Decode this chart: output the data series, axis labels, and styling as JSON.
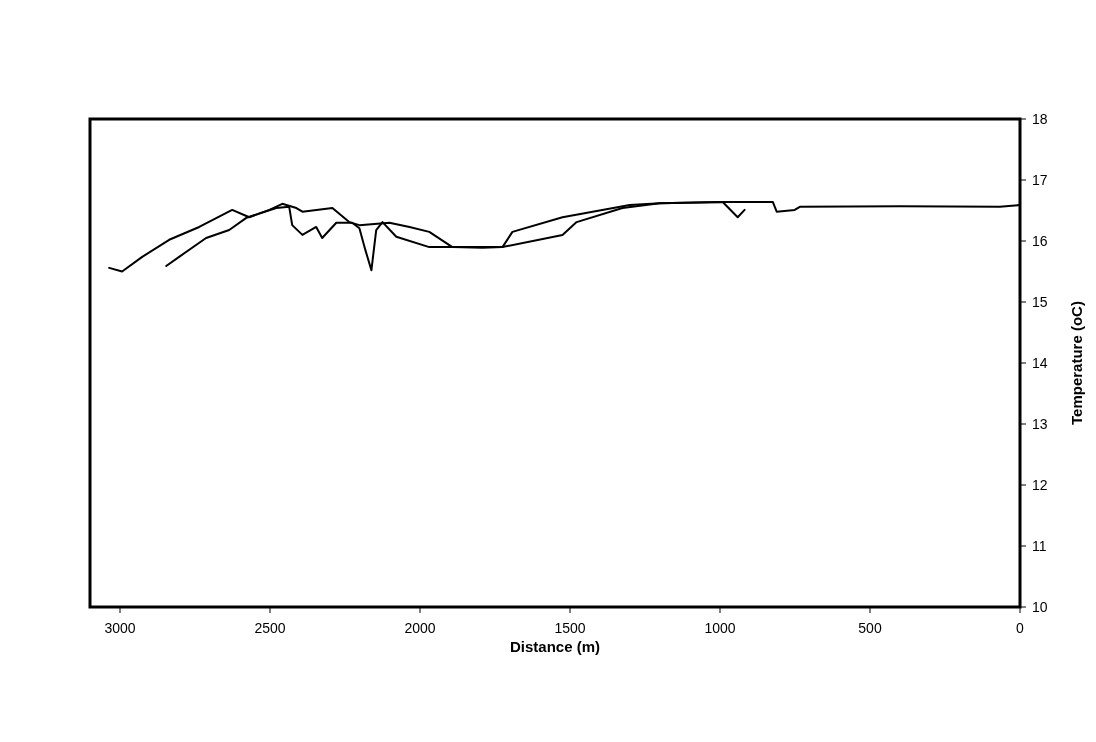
{
  "chart_data": {
    "type": "line",
    "xlabel": "Distance (m)",
    "ylabel": "Temperature (oC)",
    "xlim": [
      3100,
      0
    ],
    "xticks": [
      3000,
      2500,
      2000,
      1500,
      1000,
      500,
      0
    ],
    "ylim": [
      10,
      18
    ],
    "yticks": [
      10,
      11,
      12,
      13,
      14,
      15,
      16,
      17,
      18
    ],
    "marker": "none",
    "line_style": "solid",
    "series": [
      {
        "color": "#000000",
        "x": [
          3036,
          2993,
          2926,
          2836,
          2736,
          2626,
          2569,
          2502,
          2459,
          2412,
          2392,
          2292,
          2236,
          2202,
          2102,
          2035,
          1969,
          1892,
          1792,
          1725,
          1692,
          1525,
          1301,
          1201,
          991,
          941,
          918
        ],
        "values": [
          15.56,
          15.5,
          15.74,
          16.02,
          16.23,
          16.51,
          16.39,
          16.51,
          16.61,
          16.54,
          16.48,
          16.54,
          16.31,
          16.26,
          16.3,
          16.23,
          16.15,
          15.9,
          15.89,
          15.9,
          16.15,
          16.39,
          16.59,
          16.62,
          16.64,
          16.39,
          16.51
        ]
      },
      {
        "color": "#000000",
        "x": [
          2846,
          2803,
          2713,
          2636,
          2579,
          2479,
          2436,
          2426,
          2392,
          2346,
          2326,
          2279,
          2226,
          2202,
          2182,
          2162,
          2146,
          2125,
          2079,
          1969,
          1725,
          1525,
          1478,
          1325,
          1201,
          991,
          824,
          811,
          751,
          734,
          400,
          67,
          0
        ],
        "values": [
          15.59,
          15.74,
          16.05,
          16.18,
          16.38,
          16.54,
          16.56,
          16.26,
          16.1,
          16.23,
          16.05,
          16.3,
          16.3,
          16.21,
          15.85,
          15.52,
          16.18,
          16.31,
          16.07,
          15.9,
          15.9,
          16.1,
          16.31,
          16.54,
          16.62,
          16.64,
          16.64,
          16.48,
          16.51,
          16.56,
          16.57,
          16.56,
          16.59
        ]
      }
    ]
  }
}
